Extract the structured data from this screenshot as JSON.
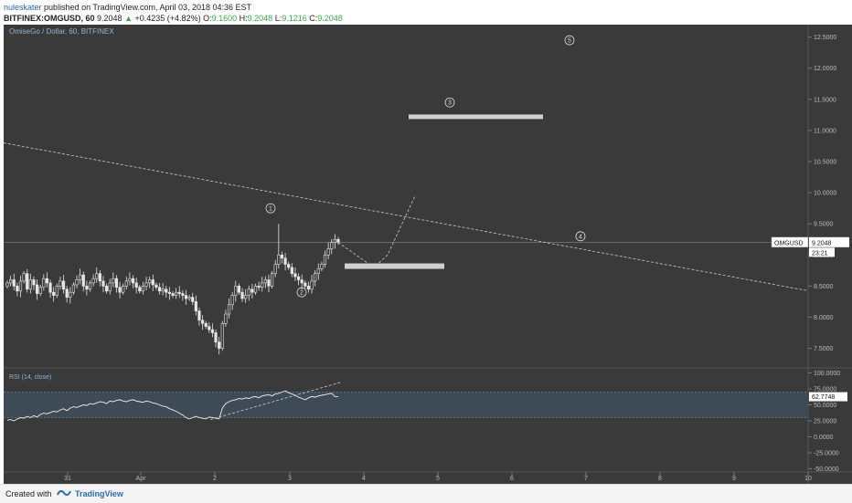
{
  "header": {
    "user": "nuleskater",
    "published": "published on TradingView.com, April 03, 2018 04:36 EST",
    "symbol": "BITFINEX:OMGUSD, 60",
    "last": "9.2048",
    "change": "+0.4235 (+4.82%)",
    "o_label": "O:",
    "o_value": "9.1600",
    "h_label": "H:",
    "h_value": "9.2048",
    "l_label": "L:",
    "l_value": "9.1216",
    "c_label": "C:",
    "c_value": "9.2048"
  },
  "chart_data": {
    "type": "candlestick",
    "title": "OmiseGo / Dollar, 60, BITFINEX",
    "y_ticks": [
      "12.5000",
      "12.0000",
      "11.5000",
      "11.0000",
      "10.5000",
      "10.0000",
      "9.5000",
      "9.0000",
      "8.5000",
      "8.0000",
      "7.5000"
    ],
    "ylim": [
      7.2,
      12.7
    ],
    "x_ticks": [
      "31",
      "Apr",
      "2",
      "3",
      "4",
      "5",
      "6",
      "7",
      "8",
      "9",
      "10"
    ],
    "price_label": {
      "symbol": "OMGUSD",
      "price": "9.2048",
      "countdown": "23:21"
    },
    "current_price": 9.2048,
    "wave_labels": [
      "1",
      "2",
      "3",
      "4",
      "5"
    ],
    "colors": {
      "background": "#3a3a3a",
      "candle": "#e6e6e6",
      "annotation": "#cccccc",
      "rsi_band": "#3f4a57"
    },
    "candles_close_series": [
      8.55,
      8.6,
      8.5,
      8.42,
      8.58,
      8.7,
      8.45,
      8.6,
      8.52,
      8.38,
      8.48,
      8.62,
      8.55,
      8.4,
      8.35,
      8.5,
      8.58,
      8.45,
      8.32,
      8.4,
      8.52,
      8.6,
      8.68,
      8.5,
      8.45,
      8.55,
      8.62,
      8.7,
      8.58,
      8.5,
      8.42,
      8.55,
      8.62,
      8.48,
      8.4,
      8.5,
      8.58,
      8.62,
      8.55,
      8.48,
      8.42,
      8.5,
      8.55,
      8.6,
      8.52,
      8.48,
      8.42,
      8.45,
      8.4,
      8.38,
      8.35,
      8.4,
      8.38,
      8.35,
      8.3,
      8.32,
      8.25,
      8.1,
      7.95,
      7.9,
      7.85,
      7.8,
      7.75,
      7.6,
      7.5,
      7.9,
      8.05,
      8.2,
      8.35,
      8.5,
      8.4,
      8.3,
      8.35,
      8.45,
      8.4,
      8.5,
      8.48,
      8.55,
      8.6,
      8.5,
      8.7,
      8.85,
      9.0,
      8.95,
      8.85,
      8.8,
      8.7,
      8.65,
      8.6,
      8.55,
      8.5,
      8.45,
      8.58,
      8.7,
      8.78,
      8.85,
      9.0,
      9.1,
      9.2,
      9.25,
      9.2048
    ],
    "rsi": {
      "label": "RSI (14, close)",
      "value_label": "62.7748",
      "y_ticks": [
        "100.0000",
        "75.0000",
        "50.0000",
        "25.0000",
        "0.0000",
        "-25.0000",
        "-50.0000"
      ],
      "ylim": [
        -55,
        105
      ],
      "series": [
        26,
        27,
        25,
        28,
        30,
        29,
        32,
        30,
        33,
        31,
        35,
        37,
        36,
        38,
        40,
        39,
        42,
        44,
        41,
        45,
        47,
        46,
        48,
        50,
        49,
        52,
        51,
        53,
        55,
        54,
        52,
        56,
        55,
        57,
        58,
        56,
        55,
        57,
        58,
        56,
        55,
        54,
        56,
        55,
        53,
        52,
        50,
        48,
        47,
        44,
        42,
        40,
        37,
        34,
        30,
        28,
        30,
        32,
        30,
        29,
        28,
        31,
        30,
        29,
        28,
        45,
        52,
        55,
        57,
        58,
        60,
        59,
        61,
        60,
        62,
        63,
        61,
        64,
        65,
        66,
        64,
        67,
        68,
        70,
        72,
        69,
        67,
        65,
        62,
        60,
        58,
        61,
        63,
        62,
        64,
        65,
        66,
        67,
        68,
        63,
        62.77
      ],
      "band": [
        70,
        30
      ]
    }
  },
  "footer": {
    "created_with": "Created with",
    "brand": "TradingView"
  }
}
